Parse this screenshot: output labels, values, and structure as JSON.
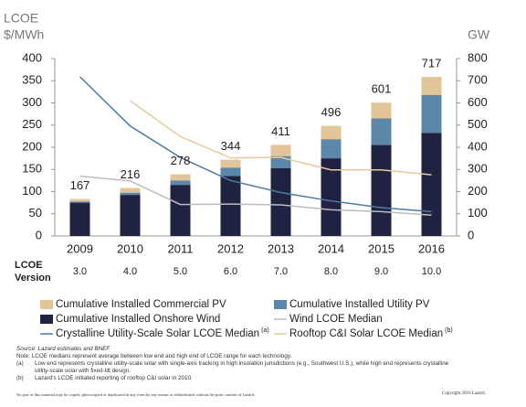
{
  "chart_data": {
    "type": "combo",
    "y_label_lines": [
      "LCOE",
      "$/MWh"
    ],
    "y2_label": "GW",
    "categories": [
      "2009",
      "2010",
      "2011",
      "2012",
      "2013",
      "2014",
      "2015",
      "2016"
    ],
    "version_label": "LCOE Version",
    "versions": [
      "3.0",
      "4.0",
      "5.0",
      "6.0",
      "7.0",
      "8.0",
      "9.0",
      "10.0"
    ],
    "totals": [
      167,
      216,
      278,
      344,
      411,
      496,
      601,
      717
    ],
    "ylim": [
      0,
      400
    ],
    "yticks": [
      0,
      50,
      100,
      150,
      200,
      250,
      300,
      350,
      400
    ],
    "y2lim": [
      0,
      800
    ],
    "y2ticks": [
      0,
      100,
      200,
      300,
      400,
      500,
      600,
      700,
      800
    ],
    "series": [
      {
        "name": "Cumulative Installed Commercial PV",
        "type": "bar",
        "axis": "y2",
        "color": "#e3c59a",
        "values": [
          12,
          21,
          28,
          36,
          51,
          60,
          71,
          81
        ]
      },
      {
        "name": "Cumulative Installed Utility PV",
        "type": "bar",
        "axis": "y2",
        "color": "#5d87a8",
        "values": [
          5,
          10,
          20,
          38,
          54,
          86,
          120,
          172
        ]
      },
      {
        "name": "Cumulative Installed Onshore Wind",
        "type": "bar",
        "axis": "y2",
        "color": "#1f2240",
        "values": [
          150,
          185,
          230,
          270,
          306,
          350,
          410,
          464
        ]
      },
      {
        "name": "Wind LCOE Median",
        "type": "line",
        "axis": "y",
        "color": "#bdbdbd",
        "values": [
          135,
          124,
          71,
          72,
          70,
          59,
          55,
          47
        ]
      },
      {
        "name": "Crystalline Utility-Scale Solar LCOE Median",
        "note": "(a)",
        "type": "line",
        "axis": "y",
        "color": "#4f7ba3",
        "values": [
          359,
          248,
          177,
          125,
          98,
          79,
          64,
          55
        ]
      },
      {
        "name": "Rooftop C&I Solar LCOE Median",
        "note": "(b)",
        "type": "line",
        "axis": "y",
        "color": "#e8c9a0",
        "values": [
          null,
          305,
          224,
          176,
          177,
          149,
          149,
          138
        ]
      }
    ],
    "footnotes": {
      "source": "Source: Lazard estimates and BNEF.",
      "note": "Note: LCOE medians represent average between low end and high end of LCOE range for each technology.",
      "a_mark": "(a)",
      "a": "Low end represents crystalline utility-scale solar with single-axis tracking in high insolation jurisdictions (e.g., Southwest U.S.), while high end represents crystalline utility-scale solar with fixed-tilt design.",
      "b_mark": "(b)",
      "b": "Lazard's LCOE initiated reporting of rooftop C&I solar in 2010.",
      "disclaimer": "No part of this material may be copied, photocopied or duplicated in any form by any means or redistributed without the prior consent of Lazard.",
      "copyright": "Copyright 2016 Lazard."
    }
  }
}
